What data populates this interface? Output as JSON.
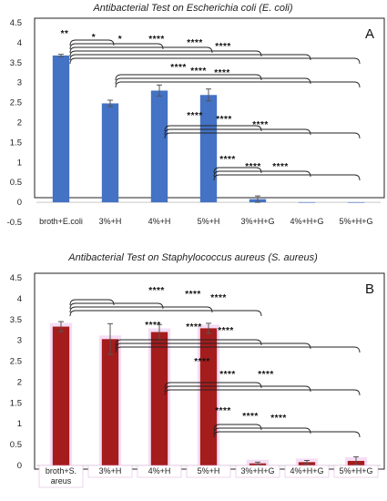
{
  "chart_data": [
    {
      "type": "bar",
      "title": "Antibacterial Test on Escherichia coli (E. coli)",
      "panel_label": "A",
      "categories": [
        "broth+E.coli",
        "3%+H",
        "4%+H",
        "5%+H",
        "3%+H+G",
        "4%+H+G",
        "5%+H+G"
      ],
      "values": [
        3.68,
        2.48,
        2.8,
        2.69,
        0.08,
        0.0,
        0.0
      ],
      "errors": [
        0.03,
        0.08,
        0.14,
        0.15,
        0.08,
        0.0,
        0.0
      ],
      "ylim": [
        -0.5,
        4.5
      ],
      "yticks": [
        "-0.5",
        "0",
        "0.5",
        "1",
        "1.5",
        "2",
        "2.5",
        "3",
        "3.5",
        "4",
        "4.5"
      ],
      "bar_color": "#4472c4",
      "significance_labels": [
        "**",
        "*",
        "*",
        "****",
        "****",
        "****",
        "****",
        "****",
        "****",
        "****",
        "****",
        "****",
        "****",
        "****",
        "****"
      ]
    },
    {
      "type": "bar",
      "title": "Antibacterial Test on Staphylococcus aureus (S. aureus)",
      "panel_label": "B",
      "categories": [
        "broth+S. areus",
        "3%+H",
        "4%+H",
        "5%+H",
        "3%+H+G",
        "4%+H+G",
        "5%+H+G"
      ],
      "values": [
        3.33,
        3.03,
        3.2,
        3.29,
        0.05,
        0.08,
        0.11
      ],
      "errors": [
        0.12,
        0.37,
        0.18,
        0.12,
        0.03,
        0.04,
        0.1
      ],
      "ylim": [
        0,
        4.5
      ],
      "yticks": [
        "0",
        "0.5",
        "1",
        "1.5",
        "2",
        "2.5",
        "3",
        "3.5",
        "4",
        "4.5"
      ],
      "bar_color": "#a51c1c",
      "significance_labels": [
        "****",
        "****",
        "****",
        "****",
        "****",
        "****",
        "****",
        "****",
        "****",
        "****",
        "****",
        "****"
      ]
    }
  ]
}
